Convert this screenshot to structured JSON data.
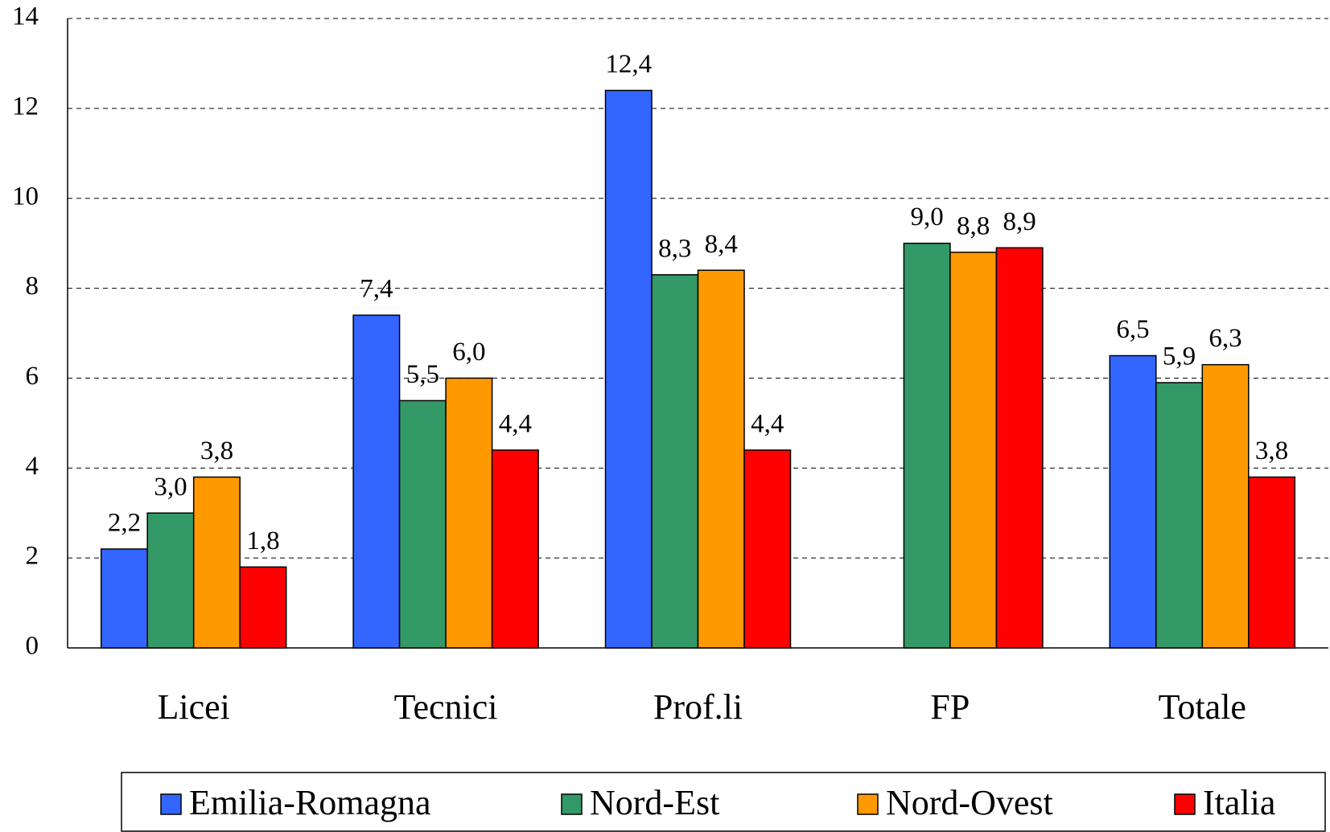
{
  "chart_data": {
    "type": "bar",
    "categories": [
      "Licei",
      "Tecnici",
      "Prof.li",
      "FP",
      "Totale"
    ],
    "series": [
      {
        "name": "Emilia-Romagna",
        "color": "#3366ff",
        "values": [
          2.2,
          7.4,
          12.4,
          null,
          6.5
        ],
        "value_labels": [
          "2,2",
          "7,4",
          "12,4",
          null,
          "6,5"
        ]
      },
      {
        "name": "Nord-Est",
        "color": "#339966",
        "values": [
          3.0,
          5.5,
          8.3,
          9.0,
          5.9
        ],
        "value_labels": [
          "3,0",
          "5,5",
          "8,3",
          "9,0",
          "5,9"
        ]
      },
      {
        "name": "Nord-Ovest",
        "color": "#ff9900",
        "values": [
          3.8,
          6.0,
          8.4,
          8.8,
          6.3
        ],
        "value_labels": [
          "3,8",
          "6,0",
          "8,4",
          "8,8",
          "6,3"
        ]
      },
      {
        "name": "Italia",
        "color": "#ff0000",
        "values": [
          1.8,
          4.4,
          4.4,
          8.9,
          3.8
        ],
        "value_labels": [
          "1,8",
          "4,4",
          "4,4",
          "8,9",
          "3,8"
        ]
      }
    ],
    "ylim": [
      0,
      14
    ],
    "yticks": [
      0,
      2,
      4,
      6,
      8,
      10,
      12,
      14
    ],
    "grid": true
  }
}
